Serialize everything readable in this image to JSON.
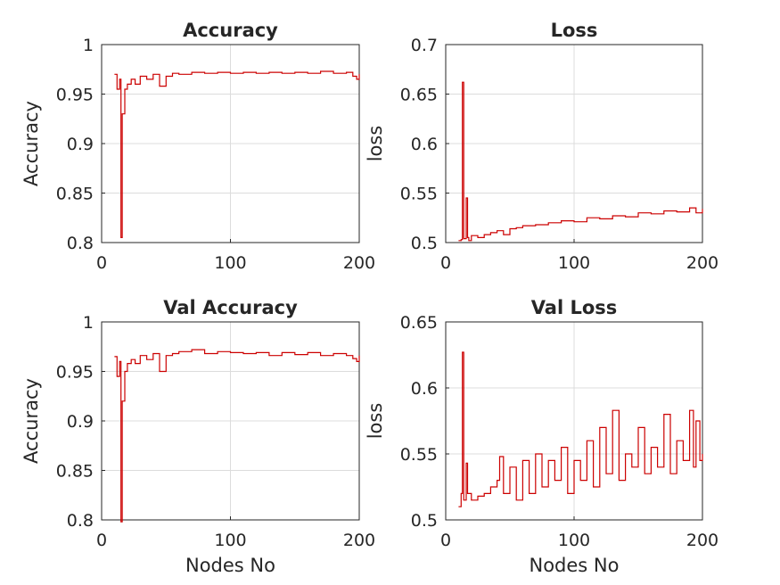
{
  "chart_data": [
    {
      "type": "line",
      "title": "Accuracy",
      "xlabel": "",
      "ylabel": "Accuracy",
      "xlim": [
        0,
        200
      ],
      "ylim": [
        0.8,
        1
      ],
      "xticks": [
        "0",
        "100",
        "200"
      ],
      "yticks": [
        "0.8",
        "0.85",
        "0.9",
        "0.95",
        "1"
      ],
      "grid": true,
      "series": [
        {
          "color": "#cc0000",
          "x": [
            10,
            12,
            14,
            15,
            16,
            18,
            20,
            23,
            26,
            30,
            35,
            40,
            45,
            50,
            55,
            60,
            70,
            80,
            90,
            100,
            110,
            120,
            130,
            140,
            150,
            160,
            170,
            180,
            190,
            195,
            198,
            200
          ],
          "y": [
            0.97,
            0.955,
            0.965,
            0.805,
            0.93,
            0.955,
            0.96,
            0.965,
            0.96,
            0.968,
            0.965,
            0.97,
            0.958,
            0.968,
            0.971,
            0.97,
            0.972,
            0.971,
            0.972,
            0.971,
            0.972,
            0.971,
            0.972,
            0.971,
            0.972,
            0.971,
            0.973,
            0.971,
            0.972,
            0.968,
            0.965,
            0.97
          ]
        }
      ]
    },
    {
      "type": "line",
      "title": "Loss",
      "xlabel": "",
      "ylabel": "loss",
      "xlim": [
        0,
        200
      ],
      "ylim": [
        0.5,
        0.7
      ],
      "xticks": [
        "0",
        "100",
        "200"
      ],
      "yticks": [
        "0.5",
        "0.55",
        "0.6",
        "0.65",
        "0.7"
      ],
      "grid": true,
      "series": [
        {
          "color": "#cc0000",
          "x": [
            10,
            12,
            13,
            14,
            16,
            17,
            18,
            20,
            25,
            30,
            35,
            40,
            45,
            50,
            55,
            60,
            70,
            80,
            90,
            100,
            110,
            120,
            130,
            140,
            150,
            160,
            170,
            180,
            190,
            195,
            200
          ],
          "y": [
            0.502,
            0.503,
            0.662,
            0.504,
            0.545,
            0.505,
            0.502,
            0.507,
            0.505,
            0.508,
            0.51,
            0.512,
            0.508,
            0.514,
            0.515,
            0.517,
            0.518,
            0.52,
            0.522,
            0.521,
            0.525,
            0.524,
            0.527,
            0.526,
            0.53,
            0.529,
            0.532,
            0.531,
            0.535,
            0.53,
            0.534
          ]
        }
      ]
    },
    {
      "type": "line",
      "title": "Val Accuracy",
      "xlabel": "Nodes No",
      "ylabel": "Accuracy",
      "xlim": [
        0,
        200
      ],
      "ylim": [
        0.8,
        1
      ],
      "xticks": [
        "0",
        "100",
        "200"
      ],
      "yticks": [
        "0.8",
        "0.85",
        "0.9",
        "0.95",
        "1"
      ],
      "grid": true,
      "series": [
        {
          "color": "#cc0000",
          "x": [
            10,
            12,
            14,
            15,
            16,
            18,
            20,
            23,
            26,
            30,
            35,
            40,
            45,
            50,
            55,
            60,
            70,
            80,
            90,
            100,
            110,
            120,
            130,
            140,
            150,
            160,
            170,
            180,
            190,
            195,
            198,
            200
          ],
          "y": [
            0.965,
            0.945,
            0.96,
            0.798,
            0.92,
            0.95,
            0.958,
            0.962,
            0.958,
            0.966,
            0.962,
            0.968,
            0.95,
            0.966,
            0.968,
            0.97,
            0.972,
            0.968,
            0.97,
            0.969,
            0.968,
            0.969,
            0.966,
            0.969,
            0.967,
            0.969,
            0.966,
            0.968,
            0.966,
            0.963,
            0.96,
            0.966
          ]
        }
      ]
    },
    {
      "type": "line",
      "title": "Val Loss",
      "xlabel": "Nodes No",
      "ylabel": "loss",
      "xlim": [
        0,
        200
      ],
      "ylim": [
        0.5,
        0.65
      ],
      "xticks": [
        "0",
        "100",
        "200"
      ],
      "yticks": [
        "0.5",
        "0.55",
        "0.6",
        "0.65"
      ],
      "grid": true,
      "series": [
        {
          "color": "#cc0000",
          "x": [
            10,
            12,
            13,
            14,
            16,
            17,
            20,
            25,
            30,
            35,
            40,
            42,
            45,
            50,
            55,
            60,
            65,
            70,
            75,
            80,
            85,
            90,
            95,
            100,
            105,
            110,
            115,
            120,
            125,
            130,
            135,
            140,
            145,
            150,
            155,
            160,
            165,
            170,
            175,
            180,
            185,
            190,
            193,
            195,
            198,
            200
          ],
          "y": [
            0.51,
            0.52,
            0.627,
            0.515,
            0.543,
            0.52,
            0.515,
            0.518,
            0.52,
            0.525,
            0.53,
            0.548,
            0.52,
            0.54,
            0.515,
            0.545,
            0.52,
            0.55,
            0.525,
            0.545,
            0.53,
            0.555,
            0.52,
            0.545,
            0.53,
            0.56,
            0.525,
            0.57,
            0.535,
            0.583,
            0.53,
            0.55,
            0.54,
            0.57,
            0.535,
            0.555,
            0.54,
            0.58,
            0.535,
            0.56,
            0.545,
            0.583,
            0.54,
            0.575,
            0.545,
            0.55
          ]
        }
      ]
    }
  ]
}
